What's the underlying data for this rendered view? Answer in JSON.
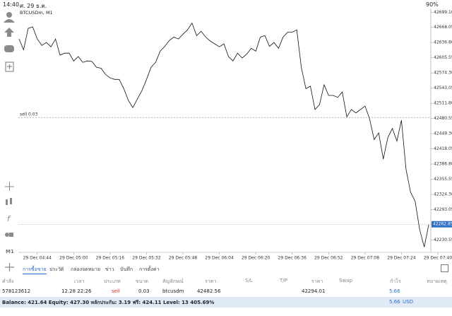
{
  "status_bar": {
    "time": "14:40",
    "date": "ศ. 29 ธ.ค.",
    "battery": "90%"
  },
  "sidebar": {
    "timeframe": "M1"
  },
  "chart_data": {
    "type": "line",
    "title": "BTCUSDm, M1",
    "color": "#111111",
    "categories": [
      null,
      null,
      null,
      null,
      "29 Dec 04:44",
      null,
      null,
      null,
      null,
      null,
      null,
      null,
      "29 Dec 05:00",
      null,
      null,
      null,
      null,
      null,
      null,
      null,
      "29 Dec 05:16",
      null,
      null,
      null,
      null,
      null,
      null,
      null,
      "29 Dec 05:32",
      null,
      null,
      null,
      null,
      null,
      null,
      null,
      "29 Dec 05:48",
      null,
      null,
      null,
      null,
      null,
      null,
      null,
      "29 Dec 06:04",
      null,
      null,
      null,
      null,
      null,
      null,
      null,
      "29 Dec 06:20",
      null,
      null,
      null,
      null,
      null,
      null,
      null,
      "29 Dec 06:36",
      null,
      null,
      null,
      null,
      null,
      null,
      null,
      "29 Dec 06:52",
      null,
      null,
      null,
      null,
      null,
      null,
      null,
      "29 Dec 07:08",
      null,
      null,
      null,
      null,
      null,
      null,
      null,
      "29 Dec 07:24",
      null,
      null,
      null,
      null,
      null,
      null,
      null,
      "29 Dec 07:40"
    ],
    "values": [
      42644,
      42622,
      42666,
      42669,
      42644,
      42631,
      42637,
      42628,
      42644,
      42611,
      42615,
      42615,
      42599,
      42608,
      42596,
      42599,
      42598,
      42586,
      42584,
      42571,
      42564,
      42561,
      42561,
      42542,
      42518,
      42503,
      42521,
      42538,
      42561,
      42586,
      42596,
      42619,
      42629,
      42641,
      42648,
      42644,
      42654,
      42663,
      42677,
      42651,
      42660,
      42648,
      42640,
      42634,
      42628,
      42634,
      42608,
      42599,
      42615,
      42605,
      42613,
      42625,
      42619,
      42648,
      42651,
      42629,
      42637,
      42625,
      42648,
      42658,
      42658,
      42663,
      42586,
      42542,
      42547,
      42499,
      42509,
      42550,
      42528,
      42528,
      42524,
      42535,
      42484,
      42499,
      42492,
      42499,
      42506,
      42480,
      42437,
      42451,
      42397,
      42441,
      42460,
      42434,
      42477,
      42376,
      42329,
      42310,
      42252,
      42216,
      42262,
      null,
      null
    ],
    "ylim": [
      42205,
      42704
    ],
    "yticks": [
      {
        "value": 42699.1,
        "label": "42699.10"
      },
      42668.05,
      {
        "value": 42636.8,
        "label": "42636.80"
      },
      42605.55,
      {
        "value": 42574.3,
        "label": "42574.30"
      },
      42543.05,
      {
        "value": 42511.8,
        "label": "42511.80"
      },
      42480.55,
      {
        "value": 42449.3,
        "label": "42449.30"
      },
      42418.05,
      {
        "value": 42386.8,
        "label": "42386.80"
      },
      42355.55,
      {
        "value": 42324.3,
        "label": "42324.30"
      },
      42293.05,
      42230.55
    ],
    "current_price": {
      "value": 42262.85,
      "label": "42262.85"
    },
    "order_line": {
      "value": 42482.56,
      "label": "sell 0.03"
    }
  },
  "tabs": [
    "การซื้อขาย",
    "ประวัติ",
    "กล่องจดหมาย",
    "ข่าว",
    "บันทึก",
    "การตั้งค่า"
  ],
  "table": {
    "columns": [
      "คำสั่ง",
      "เวลา",
      "ประเภท",
      "ขนาด",
      "สัญลักษณ์",
      "ราคา",
      "S/L",
      "T/P",
      "ราคา",
      "Swap",
      "กำไร",
      "หมายเหตุ"
    ],
    "rows": [
      {
        "order": "578123612",
        "time": "12.28 22:26",
        "type": "sell",
        "volume": "0.03",
        "symbol": "btcusdm",
        "open_price": "42482.56",
        "price": "42294.01",
        "profit": "5.66"
      }
    ]
  },
  "footer": {
    "summary": "Balance: 421.64 Equity: 427.30 หลักประกัน: 3.19 ฟรี: 424.11 Level: 13 405.69%",
    "profit": "5.66",
    "currency": "USD"
  }
}
